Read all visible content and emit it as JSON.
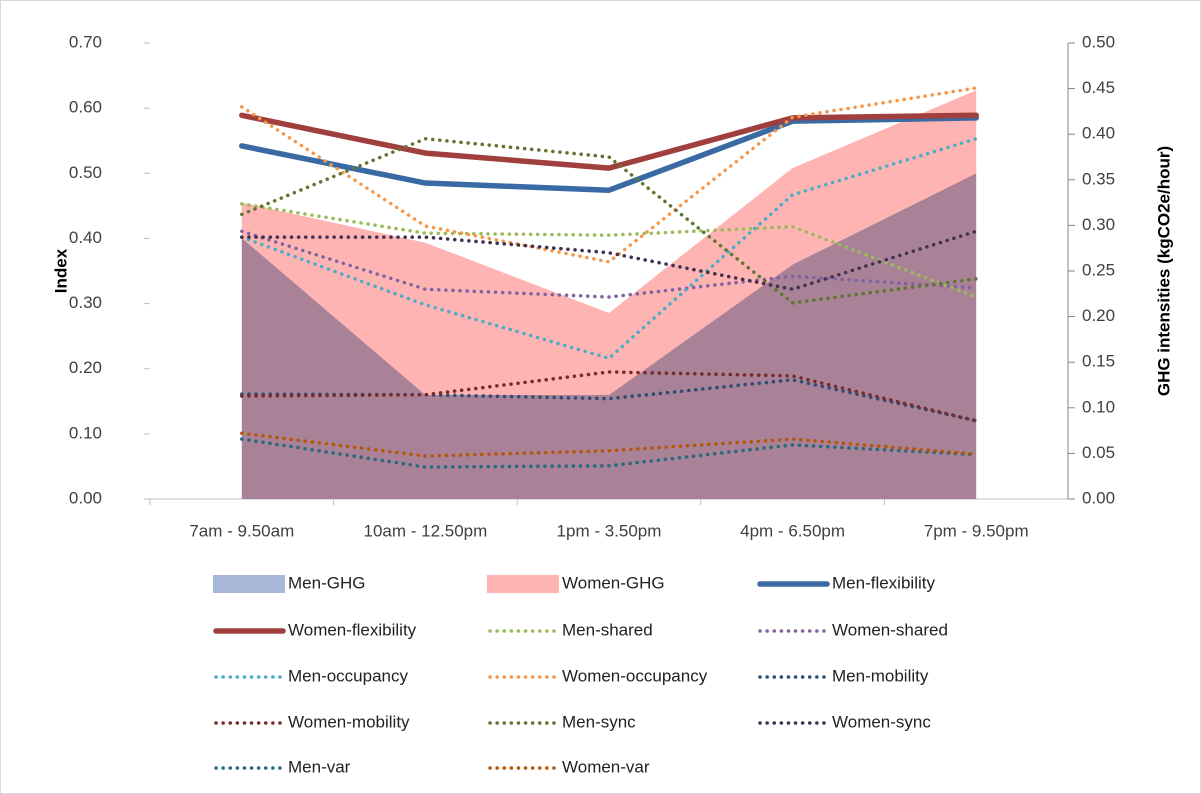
{
  "chart_data": {
    "type": "combo",
    "y_label": "Index",
    "y2_label": "GHG intensities (kgCO2e/hour)",
    "categories": [
      "7am - 9.50am",
      "10am - 12.50pm",
      "1pm - 3.50pm",
      "4pm - 6.50pm",
      "7pm - 9.50pm"
    ],
    "ylim": [
      0,
      0.7
    ],
    "yticks": [
      {
        "value": 0,
        "label": "0.00"
      },
      {
        "value": 0.1,
        "label": "0.10"
      },
      {
        "value": 0.2,
        "label": "0.20"
      },
      {
        "value": 0.3,
        "label": "0.30"
      },
      {
        "value": 0.4,
        "label": "0.40"
      },
      {
        "value": 0.5,
        "label": "0.50"
      },
      {
        "value": 0.6,
        "label": "0.60"
      },
      {
        "value": 0.7,
        "label": "0.70"
      }
    ],
    "y2lim": [
      0,
      0.5
    ],
    "y2ticks": [
      {
        "value": 0,
        "label": "0.00"
      },
      {
        "value": 0.05,
        "label": "0.05"
      },
      {
        "value": 0.1,
        "label": "0.10"
      },
      {
        "value": 0.15,
        "label": "0.15"
      },
      {
        "value": 0.2,
        "label": "0.20"
      },
      {
        "value": 0.25,
        "label": "0.25"
      },
      {
        "value": 0.3,
        "label": "0.30"
      },
      {
        "value": 0.35,
        "label": "0.35"
      },
      {
        "value": 0.4,
        "label": "0.40"
      },
      {
        "value": 0.45,
        "label": "0.45"
      },
      {
        "value": 0.5,
        "label": "0.50"
      }
    ],
    "series": [
      {
        "name": "Men-GHG",
        "type": "area",
        "axis": "y2",
        "color": "#a9b8d8",
        "values": [
          0.286,
          0.114,
          0.114,
          0.257,
          0.357
        ]
      },
      {
        "name": "Women-GHG",
        "type": "area",
        "axis": "y2",
        "color": "#ffb4b4",
        "values": [
          0.325,
          0.281,
          0.204,
          0.363,
          0.448
        ]
      },
      {
        "name": "Men-flexibility",
        "type": "line",
        "line_style": "solid",
        "color": "#3a6aa3",
        "values": [
          0.542,
          0.485,
          0.474,
          0.58,
          0.585
        ]
      },
      {
        "name": "Women-flexibility",
        "type": "line",
        "line_style": "solid",
        "color": "#a0403e",
        "values": [
          0.589,
          0.531,
          0.508,
          0.585,
          0.589
        ]
      },
      {
        "name": "Men-shared",
        "type": "line",
        "line_style": "dotted",
        "color": "#9bbb59",
        "values": [
          0.453,
          0.408,
          0.405,
          0.418,
          0.31
        ]
      },
      {
        "name": "Women-shared",
        "type": "line",
        "line_style": "dotted",
        "color": "#8064a2",
        "values": [
          0.411,
          0.322,
          0.31,
          0.342,
          0.324
        ]
      },
      {
        "name": "Men-occupancy",
        "type": "line",
        "line_style": "dotted",
        "color": "#4bacc6",
        "values": [
          0.402,
          0.298,
          0.216,
          0.467,
          0.553
        ]
      },
      {
        "name": "Women-occupancy",
        "type": "line",
        "line_style": "dotted",
        "color": "#f79646",
        "values": [
          0.602,
          0.419,
          0.364,
          0.586,
          0.631
        ]
      },
      {
        "name": "Men-mobility",
        "type": "line",
        "line_style": "dotted",
        "color": "#2c4d75",
        "values": [
          0.161,
          0.16,
          0.154,
          0.183,
          0.12
        ]
      },
      {
        "name": "Women-mobility",
        "type": "line",
        "line_style": "dotted",
        "color": "#772c2a",
        "values": [
          0.158,
          0.16,
          0.195,
          0.189,
          0.12
        ]
      },
      {
        "name": "Men-sync",
        "type": "line",
        "line_style": "dotted",
        "color": "#5f7530",
        "values": [
          0.437,
          0.553,
          0.525,
          0.301,
          0.338
        ]
      },
      {
        "name": "Women-sync",
        "type": "line",
        "line_style": "dotted",
        "color": "#403152",
        "values": [
          0.402,
          0.402,
          0.378,
          0.322,
          0.411
        ]
      },
      {
        "name": "Men-var",
        "type": "line",
        "line_style": "dotted",
        "color": "#276a7c",
        "values": [
          0.092,
          0.049,
          0.051,
          0.083,
          0.068
        ]
      },
      {
        "name": "Women-var",
        "type": "line",
        "line_style": "dotted",
        "color": "#b65708",
        "values": [
          0.101,
          0.066,
          0.074,
          0.092,
          0.069
        ]
      }
    ]
  }
}
